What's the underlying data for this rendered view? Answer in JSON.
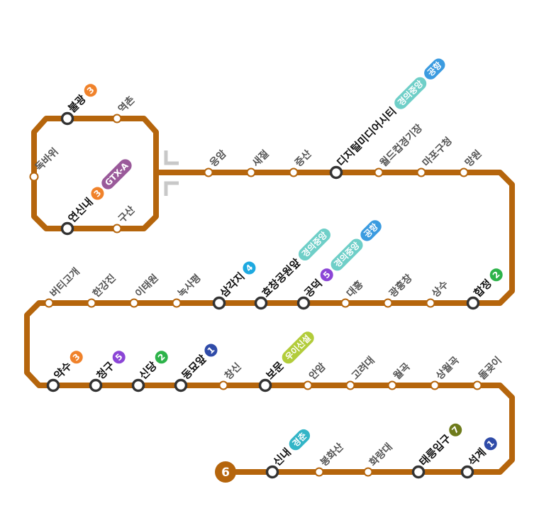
{
  "line": {
    "number": "6",
    "color": "#B5650C"
  },
  "transfer_colors": {
    "1": "#2F4BA8",
    "2": "#2DB34A",
    "3": "#F0822B",
    "4": "#1EA9E0",
    "5": "#8B45D6",
    "7": "#6E7B1B",
    "경의중앙": "#6FCFC8",
    "공항": "#3B9BE0",
    "GTX-A": "#9A5A9A",
    "우이신설": "#B2CC3A",
    "경춘": "#33B5C7"
  },
  "loop_direction_arrows": "one-way loop direction",
  "stations": [
    {
      "name": "불광",
      "transfers": [
        "3"
      ]
    },
    {
      "name": "역촌",
      "transfers": []
    },
    {
      "name": "독바위",
      "transfers": []
    },
    {
      "name": "연신내",
      "transfers": [
        "3",
        "GTX-A"
      ]
    },
    {
      "name": "구산",
      "transfers": []
    },
    {
      "name": "응암",
      "transfers": []
    },
    {
      "name": "새절",
      "transfers": []
    },
    {
      "name": "증산",
      "transfers": []
    },
    {
      "name": "디지털미디어시티",
      "transfers": [
        "경의중앙",
        "공항"
      ]
    },
    {
      "name": "월드컵경기장",
      "transfers": []
    },
    {
      "name": "마포구청",
      "transfers": []
    },
    {
      "name": "망원",
      "transfers": []
    },
    {
      "name": "합정",
      "transfers": [
        "2"
      ]
    },
    {
      "name": "상수",
      "transfers": []
    },
    {
      "name": "광흥창",
      "transfers": []
    },
    {
      "name": "대흥",
      "transfers": []
    },
    {
      "name": "공덕",
      "transfers": [
        "5",
        "경의중앙",
        "공항"
      ]
    },
    {
      "name": "효창공원앞",
      "transfers": [
        "경의중앙"
      ]
    },
    {
      "name": "삼각지",
      "transfers": [
        "4"
      ]
    },
    {
      "name": "녹사평",
      "transfers": []
    },
    {
      "name": "이태원",
      "transfers": []
    },
    {
      "name": "한강진",
      "transfers": []
    },
    {
      "name": "버티고개",
      "transfers": []
    },
    {
      "name": "약수",
      "transfers": [
        "3"
      ]
    },
    {
      "name": "청구",
      "transfers": [
        "5"
      ]
    },
    {
      "name": "신당",
      "transfers": [
        "2"
      ]
    },
    {
      "name": "동묘앞",
      "transfers": [
        "1"
      ]
    },
    {
      "name": "창신",
      "transfers": []
    },
    {
      "name": "보문",
      "transfers": [
        "우이신설"
      ]
    },
    {
      "name": "안암",
      "transfers": []
    },
    {
      "name": "고려대",
      "transfers": []
    },
    {
      "name": "월곡",
      "transfers": []
    },
    {
      "name": "상월곡",
      "transfers": []
    },
    {
      "name": "돌곶이",
      "transfers": []
    },
    {
      "name": "신내",
      "transfers": [
        "경춘"
      ]
    },
    {
      "name": "봉화산",
      "transfers": []
    },
    {
      "name": "화랑대",
      "transfers": []
    },
    {
      "name": "태릉입구",
      "transfers": [
        "7"
      ]
    },
    {
      "name": "석계",
      "transfers": [
        "1"
      ]
    }
  ]
}
